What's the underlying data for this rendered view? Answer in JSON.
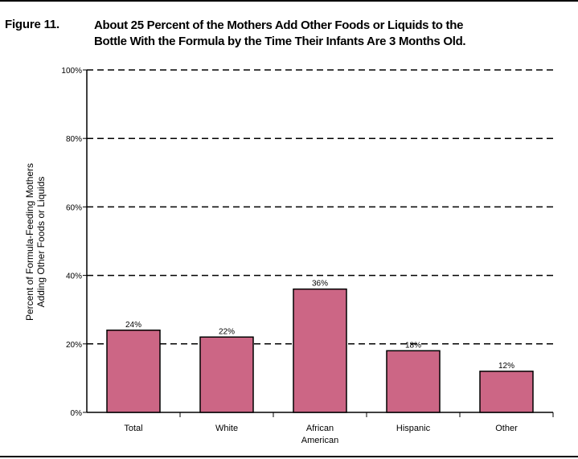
{
  "figure": {
    "label": "Figure 11.",
    "title_line1": "About 25 Percent of the Mothers Add Other Foods or Liquids to the",
    "title_line2": "Bottle With the Formula by the Time Their Infants Are 3 Months Old."
  },
  "chart_data": {
    "type": "bar",
    "categories": [
      [
        "Total"
      ],
      [
        "White"
      ],
      [
        "African",
        "American"
      ],
      [
        "Hispanic"
      ],
      [
        "Other"
      ]
    ],
    "values": [
      24,
      22,
      36,
      18,
      12
    ],
    "value_labels": [
      "24%",
      "22%",
      "36%",
      "18%",
      "12%"
    ],
    "ylabel_line1": "Percent of Formula-Feeding Mothers",
    "ylabel_line2": "Adding Other Foods or Liquids",
    "ylim": [
      0,
      100
    ],
    "yticks": [
      0,
      20,
      40,
      60,
      80,
      100
    ],
    "ytick_labels": [
      "0%",
      "20%",
      "40%",
      "60%",
      "80%",
      "100%"
    ],
    "grid": true,
    "bar_color": "#cc6685",
    "bar_outline": "#000000"
  }
}
